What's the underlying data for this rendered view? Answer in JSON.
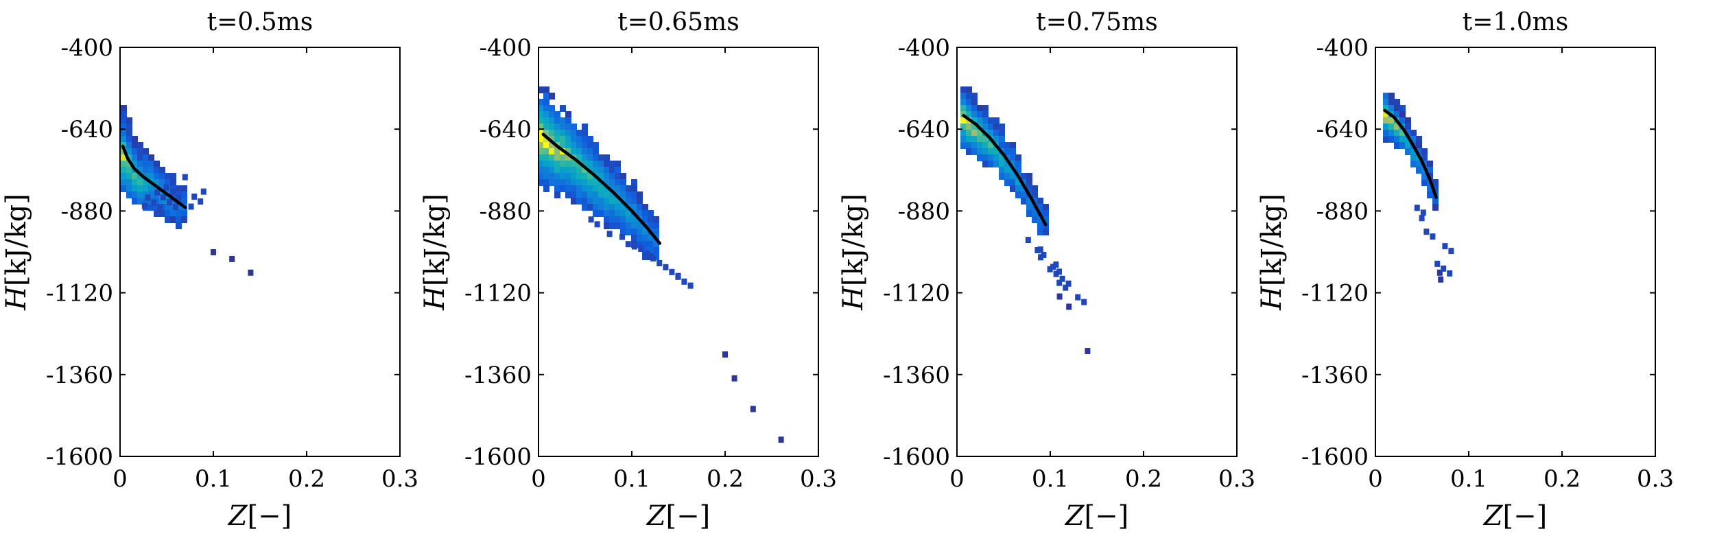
{
  "chart_data": [
    {
      "type": "heatmap",
      "title": "t=0.5ms",
      "xlabel": "Z[−]",
      "ylabel": "H[kJ/kg]",
      "xlim": [
        0,
        0.3
      ],
      "ylim": [
        -1600,
        -400
      ],
      "xticks": [
        0,
        0.1,
        0.2,
        0.3
      ],
      "xtick_labels": [
        "0",
        "0.1",
        "0.2",
        "0.3"
      ],
      "yticks": [
        -1600,
        -1360,
        -1120,
        -880,
        -640,
        -400
      ],
      "ytick_labels": [
        "-1600",
        "-1360",
        "-1120",
        "-880",
        "-640",
        "-400"
      ],
      "grid": false,
      "density": {
        "colormap": "parula",
        "center_line": [
          [
            0.03,
            -870
          ],
          [
            0.04,
            -860
          ],
          [
            0.05,
            -845
          ],
          [
            0.06,
            -830
          ],
          [
            0.07,
            -815
          ],
          [
            0.08,
            -800
          ]
        ],
        "band_width": 0.9,
        "outliers": [
          [
            0.14,
            -1060
          ],
          [
            0.12,
            -1020
          ],
          [
            0.1,
            -1000
          ]
        ]
      },
      "conditional_mean": {
        "color": "#000000",
        "x": [
          0.003,
          0.008,
          0.015,
          0.025,
          0.04,
          0.055,
          0.07
        ],
        "y": [
          -690,
          -725,
          -755,
          -780,
          -810,
          -840,
          -870
        ]
      }
    },
    {
      "type": "heatmap",
      "title": "t=0.65ms",
      "xlabel": "Z[−]",
      "ylabel": "H[kJ/kg]",
      "xlim": [
        0,
        0.3
      ],
      "ylim": [
        -1600,
        -400
      ],
      "xticks": [
        0,
        0.1,
        0.2,
        0.3
      ],
      "xtick_labels": [
        "0",
        "0.1",
        "0.2",
        "0.3"
      ],
      "yticks": [
        -1600,
        -1360,
        -1120,
        -880,
        -640,
        -400
      ],
      "ytick_labels": [
        "-1600",
        "-1360",
        "-1120",
        "-880",
        "-640",
        "-400"
      ],
      "grid": false,
      "density": {
        "colormap": "parula",
        "center_line": [
          [
            0.06,
            -910
          ],
          [
            0.08,
            -940
          ],
          [
            0.1,
            -975
          ],
          [
            0.12,
            -1010
          ],
          [
            0.14,
            -1050
          ],
          [
            0.16,
            -1090
          ]
        ],
        "band_width": 0.9,
        "outliers": [
          [
            0.26,
            -1550
          ],
          [
            0.23,
            -1460
          ],
          [
            0.21,
            -1370
          ],
          [
            0.2,
            -1300
          ]
        ]
      },
      "conditional_mean": {
        "color": "#000000",
        "x": [
          0.005,
          0.02,
          0.04,
          0.06,
          0.08,
          0.1,
          0.115,
          0.13
        ],
        "y": [
          -655,
          -690,
          -730,
          -775,
          -825,
          -880,
          -925,
          -975
        ]
      }
    },
    {
      "type": "heatmap",
      "title": "t=0.75ms",
      "xlabel": "Z[−]",
      "ylabel": "H[kJ/kg]",
      "xlim": [
        0,
        0.3
      ],
      "ylim": [
        -1600,
        -400
      ],
      "xticks": [
        0,
        0.1,
        0.2,
        0.3
      ],
      "xtick_labels": [
        "0",
        "0.1",
        "0.2",
        "0.3"
      ],
      "yticks": [
        -1600,
        -1360,
        -1120,
        -880,
        -640,
        -400
      ],
      "ytick_labels": [
        "-1600",
        "-1360",
        "-1120",
        "-880",
        "-640",
        "-400"
      ],
      "grid": false,
      "density": {
        "colormap": "parula",
        "center_line": [
          [
            0.08,
            -970
          ],
          [
            0.09,
            -1000
          ],
          [
            0.1,
            -1035
          ],
          [
            0.11,
            -1070
          ],
          [
            0.12,
            -1110
          ]
        ],
        "band_width": 0.9,
        "outliers": [
          [
            0.14,
            -1290
          ],
          [
            0.12,
            -1160
          ],
          [
            0.11,
            -1130
          ]
        ]
      },
      "conditional_mean": {
        "color": "#000000",
        "x": [
          0.007,
          0.02,
          0.035,
          0.05,
          0.065,
          0.08,
          0.095
        ],
        "y": [
          -600,
          -625,
          -665,
          -715,
          -775,
          -845,
          -920
        ]
      }
    },
    {
      "type": "heatmap",
      "title": "t=1.0ms",
      "xlabel": "Z[−]",
      "ylabel": "H[kJ/kg]",
      "xlim": [
        0,
        0.3
      ],
      "ylim": [
        -1600,
        -400
      ],
      "xticks": [
        0,
        0.1,
        0.2,
        0.3
      ],
      "xtick_labels": [
        "0",
        "0.1",
        "0.2",
        "0.3"
      ],
      "yticks": [
        -1600,
        -1360,
        -1120,
        -880,
        -640,
        -400
      ],
      "ytick_labels": [
        "-1600",
        "-1360",
        "-1120",
        "-880",
        "-640",
        "-400"
      ],
      "grid": false,
      "density": {
        "colormap": "parula",
        "center_line": [
          [
            0.055,
            -890
          ],
          [
            0.06,
            -920
          ],
          [
            0.065,
            -960
          ],
          [
            0.068,
            -1000
          ],
          [
            0.07,
            -1040
          ]
        ],
        "band_width": 0.9,
        "outliers": [
          [
            0.07,
            -1080
          ],
          [
            0.069,
            -1060
          ]
        ]
      },
      "conditional_mean": {
        "color": "#000000",
        "x": [
          0.01,
          0.02,
          0.03,
          0.04,
          0.05,
          0.058,
          0.065
        ],
        "y": [
          -585,
          -605,
          -640,
          -685,
          -735,
          -785,
          -840
        ]
      }
    }
  ]
}
